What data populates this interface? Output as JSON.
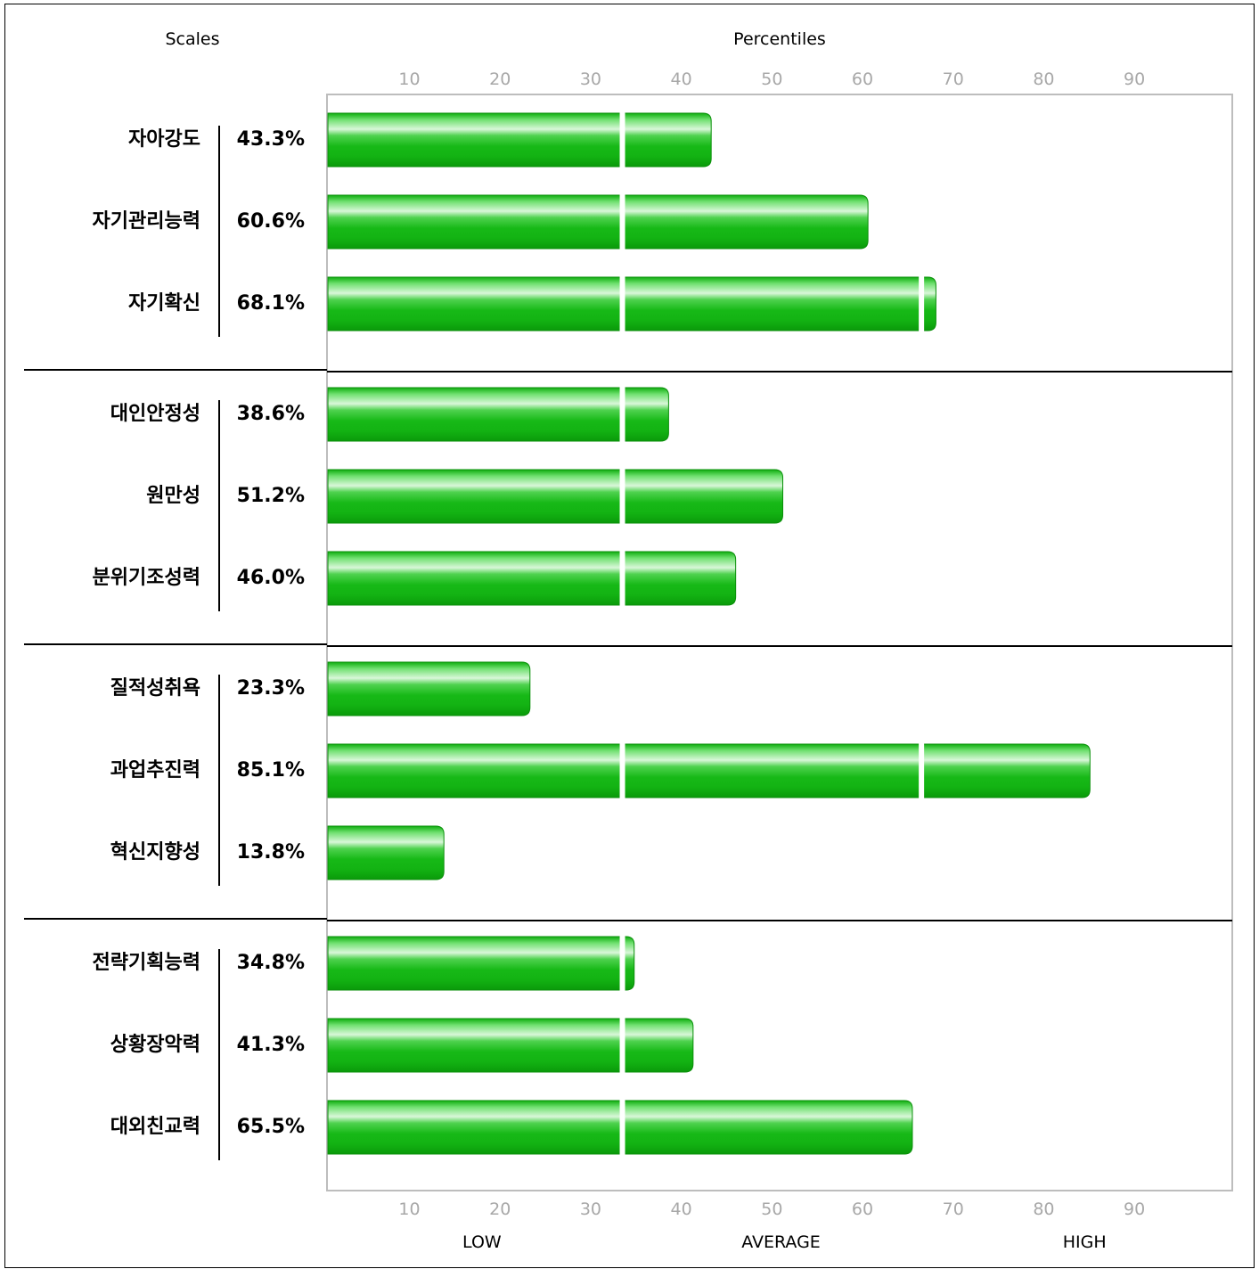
{
  "chart_data": {
    "type": "bar",
    "orientation": "horizontal",
    "scales_header": "Scales",
    "percentiles_header": "Percentiles",
    "x_ticks": [
      10,
      20,
      30,
      40,
      50,
      60,
      70,
      80,
      90
    ],
    "xlim": [
      1,
      100
    ],
    "zone_labels": [
      "LOW",
      "AVERAGE",
      "HIGH"
    ],
    "zone_boundaries": [
      33.5,
      66.5
    ],
    "bar_color": "#19c419",
    "groups": [
      {
        "items": [
          {
            "name": "자아강도",
            "label": "43.3%",
            "value": 43.3
          },
          {
            "name": "자기관리능력",
            "label": "60.6%",
            "value": 60.6
          },
          {
            "name": "자기확신",
            "label": "68.1%",
            "value": 68.1
          }
        ]
      },
      {
        "items": [
          {
            "name": "대인안정성",
            "label": "38.6%",
            "value": 38.6
          },
          {
            "name": "원만성",
            "label": "51.2%",
            "value": 51.2
          },
          {
            "name": "분위기조성력",
            "label": "46.0%",
            "value": 46.0
          }
        ]
      },
      {
        "items": [
          {
            "name": "질적성취욕",
            "label": "23.3%",
            "value": 23.3
          },
          {
            "name": "과업추진력",
            "label": "85.1%",
            "value": 85.1
          },
          {
            "name": "혁신지향성",
            "label": "13.8%",
            "value": 13.8
          }
        ]
      },
      {
        "items": [
          {
            "name": "전략기획능력",
            "label": "34.8%",
            "value": 34.8
          },
          {
            "name": "상황장악력",
            "label": "41.3%",
            "value": 41.3
          },
          {
            "name": "대외친교력",
            "label": "65.5%",
            "value": 65.5
          }
        ]
      }
    ]
  }
}
